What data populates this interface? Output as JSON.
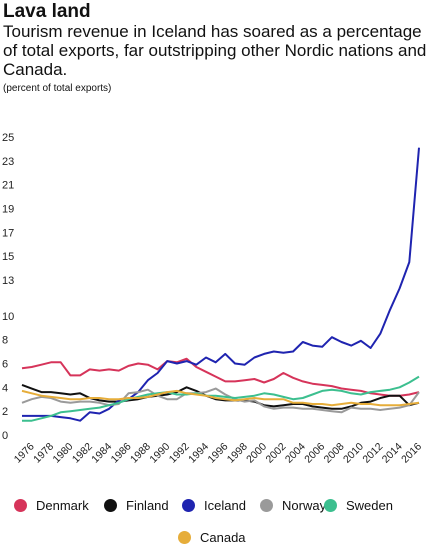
{
  "title": "Lava land",
  "subtitle": "Tourism revenue in Iceland has soared as a percentage of total exports, far outstripping other Nordic nations and Canada.",
  "unit_label": "(percent of total exports)",
  "chart_data": {
    "type": "line",
    "ylim": [
      0,
      25.5
    ],
    "yticks": [
      0,
      2,
      4,
      6,
      8,
      10,
      13,
      15,
      17,
      19,
      21,
      23,
      25
    ],
    "xlim": [
      1975,
      2016
    ],
    "xticks": [
      1976,
      1978,
      1980,
      1982,
      1984,
      1986,
      1988,
      1990,
      1992,
      1994,
      1996,
      1998,
      2000,
      2002,
      2004,
      2006,
      2008,
      2010,
      2012,
      2014,
      2016
    ],
    "grid": false,
    "legend_position": "bottom",
    "series": [
      {
        "name": "Denmark",
        "color": "#d6345a",
        "points": [
          [
            1975,
            5.6
          ],
          [
            1976,
            5.7
          ],
          [
            1977,
            5.9
          ],
          [
            1978,
            6.1
          ],
          [
            1979,
            6.1
          ],
          [
            1980,
            5.0
          ],
          [
            1981,
            5.0
          ],
          [
            1982,
            5.5
          ],
          [
            1983,
            5.4
          ],
          [
            1984,
            5.5
          ],
          [
            1985,
            5.4
          ],
          [
            1986,
            5.8
          ],
          [
            1987,
            6.0
          ],
          [
            1988,
            5.9
          ],
          [
            1989,
            5.5
          ],
          [
            1990,
            6.2
          ],
          [
            1991,
            6.1
          ],
          [
            1992,
            6.4
          ],
          [
            1993,
            5.7
          ],
          [
            1994,
            5.3
          ],
          [
            1995,
            4.9
          ],
          [
            1996,
            4.5
          ],
          [
            1997,
            4.5
          ],
          [
            1998,
            4.6
          ],
          [
            1999,
            4.7
          ],
          [
            2000,
            4.4
          ],
          [
            2001,
            4.7
          ],
          [
            2002,
            5.2
          ],
          [
            2003,
            4.8
          ],
          [
            2004,
            4.5
          ],
          [
            2005,
            4.3
          ],
          [
            2006,
            4.2
          ],
          [
            2007,
            4.1
          ],
          [
            2008,
            3.9
          ],
          [
            2009,
            3.8
          ],
          [
            2010,
            3.7
          ],
          [
            2011,
            3.5
          ],
          [
            2012,
            3.4
          ],
          [
            2013,
            3.3
          ],
          [
            2014,
            3.3
          ],
          [
            2015,
            3.4
          ],
          [
            2016,
            3.6
          ]
        ]
      },
      {
        "name": "Finland",
        "color": "#111111",
        "points": [
          [
            1975,
            4.2
          ],
          [
            1976,
            3.9
          ],
          [
            1977,
            3.6
          ],
          [
            1978,
            3.6
          ],
          [
            1979,
            3.5
          ],
          [
            1980,
            3.4
          ],
          [
            1981,
            3.5
          ],
          [
            1982,
            3.1
          ],
          [
            1983,
            2.9
          ],
          [
            1984,
            2.8
          ],
          [
            1985,
            2.8
          ],
          [
            1986,
            2.9
          ],
          [
            1987,
            3.0
          ],
          [
            1988,
            3.2
          ],
          [
            1989,
            3.3
          ],
          [
            1990,
            3.4
          ],
          [
            1991,
            3.6
          ],
          [
            1992,
            4.0
          ],
          [
            1993,
            3.7
          ],
          [
            1994,
            3.3
          ],
          [
            1995,
            3.0
          ],
          [
            1996,
            2.9
          ],
          [
            1997,
            2.9
          ],
          [
            1998,
            2.9
          ],
          [
            1999,
            2.8
          ],
          [
            2000,
            2.5
          ],
          [
            2001,
            2.4
          ],
          [
            2002,
            2.5
          ],
          [
            2003,
            2.6
          ],
          [
            2004,
            2.6
          ],
          [
            2005,
            2.4
          ],
          [
            2006,
            2.3
          ],
          [
            2007,
            2.2
          ],
          [
            2008,
            2.2
          ],
          [
            2009,
            2.4
          ],
          [
            2010,
            2.7
          ],
          [
            2011,
            2.8
          ],
          [
            2012,
            3.1
          ],
          [
            2013,
            3.3
          ],
          [
            2014,
            3.3
          ],
          [
            2015,
            2.5
          ],
          [
            2016,
            2.7
          ]
        ]
      },
      {
        "name": "Iceland",
        "color": "#1f24b0",
        "points": [
          [
            1975,
            1.6
          ],
          [
            1976,
            1.6
          ],
          [
            1977,
            1.6
          ],
          [
            1978,
            1.6
          ],
          [
            1979,
            1.5
          ],
          [
            1980,
            1.4
          ],
          [
            1981,
            1.2
          ],
          [
            1982,
            1.9
          ],
          [
            1983,
            1.8
          ],
          [
            1984,
            2.2
          ],
          [
            1985,
            2.9
          ],
          [
            1986,
            3.0
          ],
          [
            1987,
            3.6
          ],
          [
            1988,
            4.6
          ],
          [
            1989,
            5.2
          ],
          [
            1990,
            6.2
          ],
          [
            1991,
            6.0
          ],
          [
            1992,
            6.2
          ],
          [
            1993,
            5.9
          ],
          [
            1994,
            6.5
          ],
          [
            1995,
            6.1
          ],
          [
            1996,
            6.8
          ],
          [
            1997,
            6.0
          ],
          [
            1998,
            5.9
          ],
          [
            1999,
            6.5
          ],
          [
            2000,
            6.8
          ],
          [
            2001,
            7.0
          ],
          [
            2002,
            6.9
          ],
          [
            2003,
            7.0
          ],
          [
            2004,
            7.8
          ],
          [
            2005,
            7.5
          ],
          [
            2006,
            7.4
          ],
          [
            2007,
            8.2
          ],
          [
            2008,
            7.8
          ],
          [
            2009,
            7.5
          ],
          [
            2010,
            7.9
          ],
          [
            2011,
            7.3
          ],
          [
            2012,
            8.5
          ],
          [
            2013,
            10.5
          ],
          [
            2014,
            12.3
          ],
          [
            2015,
            14.5
          ],
          [
            2016,
            24.1
          ]
        ]
      },
      {
        "name": "Norway",
        "color": "#9a9a9a",
        "points": [
          [
            1975,
            2.7
          ],
          [
            1976,
            3.0
          ],
          [
            1977,
            3.2
          ],
          [
            1978,
            3.1
          ],
          [
            1979,
            2.8
          ],
          [
            1980,
            2.7
          ],
          [
            1981,
            2.8
          ],
          [
            1982,
            2.8
          ],
          [
            1983,
            2.7
          ],
          [
            1984,
            2.5
          ],
          [
            1985,
            2.6
          ],
          [
            1986,
            3.5
          ],
          [
            1987,
            3.6
          ],
          [
            1988,
            3.8
          ],
          [
            1989,
            3.3
          ],
          [
            1990,
            3.0
          ],
          [
            1991,
            3.0
          ],
          [
            1992,
            3.5
          ],
          [
            1993,
            3.5
          ],
          [
            1994,
            3.6
          ],
          [
            1995,
            3.9
          ],
          [
            1996,
            3.4
          ],
          [
            1997,
            3.0
          ],
          [
            1998,
            2.8
          ],
          [
            1999,
            2.9
          ],
          [
            2000,
            2.4
          ],
          [
            2001,
            2.2
          ],
          [
            2002,
            2.3
          ],
          [
            2003,
            2.3
          ],
          [
            2004,
            2.2
          ],
          [
            2005,
            2.2
          ],
          [
            2006,
            2.1
          ],
          [
            2007,
            2.0
          ],
          [
            2008,
            1.9
          ],
          [
            2009,
            2.3
          ],
          [
            2010,
            2.2
          ],
          [
            2011,
            2.2
          ],
          [
            2012,
            2.1
          ],
          [
            2013,
            2.2
          ],
          [
            2014,
            2.3
          ],
          [
            2015,
            2.5
          ],
          [
            2016,
            3.6
          ]
        ]
      },
      {
        "name": "Sweden",
        "color": "#3cbf8f",
        "points": [
          [
            1975,
            1.2
          ],
          [
            1976,
            1.2
          ],
          [
            1977,
            1.4
          ],
          [
            1978,
            1.6
          ],
          [
            1979,
            1.9
          ],
          [
            1980,
            2.0
          ],
          [
            1981,
            2.1
          ],
          [
            1982,
            2.2
          ],
          [
            1983,
            2.3
          ],
          [
            1984,
            2.5
          ],
          [
            1985,
            2.7
          ],
          [
            1986,
            3.0
          ],
          [
            1987,
            3.2
          ],
          [
            1988,
            3.4
          ],
          [
            1989,
            3.5
          ],
          [
            1990,
            3.6
          ],
          [
            1991,
            3.4
          ],
          [
            1992,
            3.4
          ],
          [
            1993,
            3.5
          ],
          [
            1994,
            3.3
          ],
          [
            1995,
            3.3
          ],
          [
            1996,
            3.2
          ],
          [
            1997,
            3.1
          ],
          [
            1998,
            3.2
          ],
          [
            1999,
            3.3
          ],
          [
            2000,
            3.5
          ],
          [
            2001,
            3.4
          ],
          [
            2002,
            3.2
          ],
          [
            2003,
            3.0
          ],
          [
            2004,
            3.1
          ],
          [
            2005,
            3.4
          ],
          [
            2006,
            3.7
          ],
          [
            2007,
            3.8
          ],
          [
            2008,
            3.7
          ],
          [
            2009,
            3.5
          ],
          [
            2010,
            3.4
          ],
          [
            2011,
            3.6
          ],
          [
            2012,
            3.7
          ],
          [
            2013,
            3.8
          ],
          [
            2014,
            4.0
          ],
          [
            2015,
            4.4
          ],
          [
            2016,
            4.9
          ]
        ]
      },
      {
        "name": "Canada",
        "color": "#e6ad3a",
        "points": [
          [
            1975,
            3.7
          ],
          [
            1976,
            3.5
          ],
          [
            1977,
            3.3
          ],
          [
            1978,
            3.2
          ],
          [
            1979,
            3.1
          ],
          [
            1980,
            3.0
          ],
          [
            1981,
            3.0
          ],
          [
            1982,
            3.1
          ],
          [
            1983,
            3.1
          ],
          [
            1984,
            3.0
          ],
          [
            1985,
            3.0
          ],
          [
            1986,
            3.1
          ],
          [
            1987,
            3.1
          ],
          [
            1988,
            3.2
          ],
          [
            1989,
            3.4
          ],
          [
            1990,
            3.6
          ],
          [
            1991,
            3.7
          ],
          [
            1992,
            3.5
          ],
          [
            1993,
            3.4
          ],
          [
            1994,
            3.3
          ],
          [
            1995,
            3.1
          ],
          [
            1996,
            3.0
          ],
          [
            1997,
            2.9
          ],
          [
            1998,
            3.0
          ],
          [
            1999,
            3.1
          ],
          [
            2000,
            3.0
          ],
          [
            2001,
            3.0
          ],
          [
            2002,
            3.0
          ],
          [
            2003,
            2.7
          ],
          [
            2004,
            2.7
          ],
          [
            2005,
            2.6
          ],
          [
            2006,
            2.6
          ],
          [
            2007,
            2.5
          ],
          [
            2008,
            2.6
          ],
          [
            2009,
            2.7
          ],
          [
            2010,
            2.6
          ],
          [
            2011,
            2.6
          ],
          [
            2012,
            2.5
          ],
          [
            2013,
            2.5
          ],
          [
            2014,
            2.5
          ],
          [
            2015,
            2.6
          ],
          [
            2016,
            2.7
          ]
        ]
      }
    ]
  }
}
